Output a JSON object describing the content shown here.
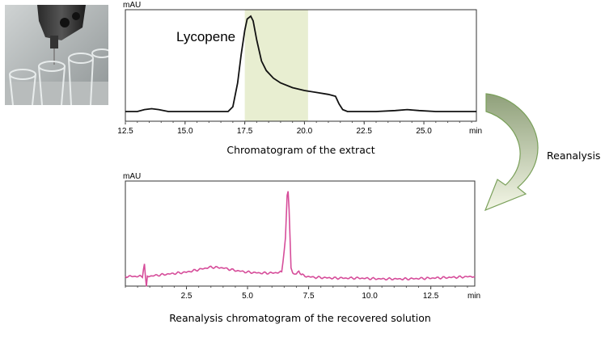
{
  "photo": {
    "icon": "fraction-collector-icon"
  },
  "arrow": {
    "label": "Reanalysis",
    "fill_top": "#8fa07a",
    "fill_bottom": "#f3f6e6",
    "stroke": "#7aa05a"
  },
  "chart_data": [
    {
      "type": "line",
      "title": "",
      "caption": "Chromatogram of the extract",
      "ylabel": "mAU",
      "xunit": "min",
      "xlim": [
        12.5,
        27.2
      ],
      "x_ticks": [
        12.5,
        15.0,
        17.5,
        20.0,
        22.5,
        25.0
      ],
      "x_tick_labels": [
        "12.5",
        "15.0",
        "17.5",
        "20.0",
        "22.5",
        "25.0"
      ],
      "highlight_range": [
        17.5,
        20.15
      ],
      "highlight_color": "#e8eed1",
      "line_color": "#111111",
      "annotation": {
        "text": "Lycopene",
        "x": 17.75
      },
      "series": [
        {
          "x": [
            12.5,
            13.0,
            13.3,
            13.6,
            13.9,
            14.3,
            15.0,
            16.0,
            16.8,
            17.0,
            17.2,
            17.35,
            17.5,
            17.6,
            17.75,
            17.85,
            18.0,
            18.2,
            18.4,
            18.7,
            19.0,
            19.5,
            20.0,
            20.5,
            21.0,
            21.3,
            21.45,
            21.6,
            21.8,
            22.3,
            23.0,
            23.8,
            24.3,
            24.8,
            25.5,
            26.5,
            27.2
          ],
          "y": [
            0.0,
            0.0,
            0.02,
            0.03,
            0.02,
            0.0,
            0.0,
            0.0,
            0.0,
            0.05,
            0.3,
            0.6,
            0.85,
            0.97,
            1.0,
            0.95,
            0.75,
            0.53,
            0.43,
            0.35,
            0.3,
            0.25,
            0.22,
            0.2,
            0.18,
            0.16,
            0.08,
            0.02,
            0.0,
            0.0,
            0.0,
            0.01,
            0.02,
            0.01,
            0.0,
            0.0,
            0.0
          ]
        }
      ]
    },
    {
      "type": "line",
      "title": "",
      "caption": "Reanalysis chromatogram of the recovered solution",
      "ylabel": "mAU",
      "xunit": "min",
      "xlim": [
        0,
        14.3
      ],
      "x_ticks": [
        2.5,
        5.0,
        7.5,
        10.0,
        12.5
      ],
      "x_tick_labels": [
        "2.5",
        "5.0",
        "7.5",
        "10.0",
        "12.5"
      ],
      "line_color": "#d64d9a",
      "series": [
        {
          "x": [
            0.0,
            0.7,
            0.78,
            0.82,
            0.86,
            0.9,
            1.5,
            2.5,
            3.0,
            3.5,
            4.0,
            4.5,
            5.0,
            5.5,
            6.0,
            6.4,
            6.55,
            6.62,
            6.66,
            6.7,
            6.78,
            6.85,
            7.0,
            7.1,
            7.2,
            7.4,
            7.7,
            8.5,
            9.5,
            10.5,
            11.5,
            12.5,
            13.5,
            14.3
          ],
          "y": [
            0.0,
            0.0,
            0.15,
            0.0,
            -0.12,
            0.0,
            0.02,
            0.05,
            0.08,
            0.11,
            0.1,
            0.07,
            0.05,
            0.04,
            0.04,
            0.05,
            0.45,
            0.95,
            1.0,
            0.8,
            0.1,
            0.04,
            0.02,
            0.07,
            0.02,
            0.0,
            -0.01,
            -0.02,
            -0.02,
            -0.03,
            -0.03,
            -0.02,
            -0.01,
            0.0
          ]
        }
      ]
    }
  ]
}
